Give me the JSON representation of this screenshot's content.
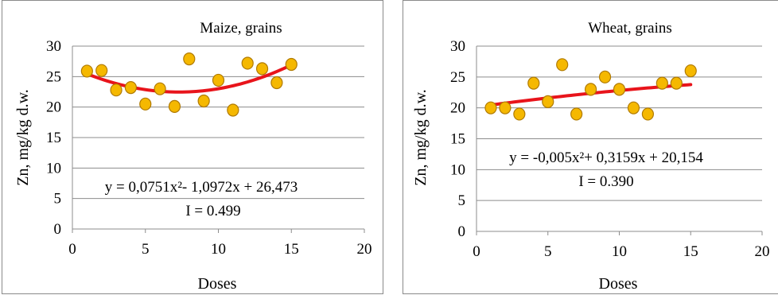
{
  "chart_data": [
    {
      "type": "scatter",
      "title": "Maize, grains",
      "xlabel": "Doses",
      "ylabel": "Zn, mg/kg d.w.",
      "xlim": [
        0,
        20
      ],
      "ylim": [
        0,
        30
      ],
      "xticks": [
        "0",
        "5",
        "10",
        "15",
        "20"
      ],
      "yticks": [
        "0",
        "5",
        "10",
        "15",
        "20",
        "25",
        "30"
      ],
      "grid": true,
      "x": [
        1,
        2,
        3,
        4,
        5,
        6,
        7,
        8,
        9,
        10,
        11,
        12,
        13,
        14,
        15
      ],
      "y": [
        25.9,
        26.0,
        22.8,
        23.2,
        20.5,
        23.0,
        20.1,
        27.9,
        21.0,
        24.4,
        19.5,
        27.2,
        26.3,
        24.0,
        27.0
      ],
      "trendline": {
        "type": "polynomial",
        "coefficients": [
          0.0751,
          -1.0972,
          26.473
        ],
        "x_range": [
          1,
          15
        ],
        "color": "#e8141b"
      },
      "equation": "y = 0,0751x²- 1,0972x + 26,473",
      "stat": "I = 0.499",
      "marker_color": "#f5b800"
    },
    {
      "type": "scatter",
      "title": "Wheat, grains",
      "xlabel": "Doses",
      "ylabel": "Zn, mg/kg d.w.",
      "xlim": [
        0,
        20
      ],
      "ylim": [
        0,
        30
      ],
      "xticks": [
        "0",
        "5",
        "10",
        "15",
        "20"
      ],
      "yticks": [
        "0",
        "5",
        "10",
        "15",
        "20",
        "25",
        "30"
      ],
      "grid": true,
      "x": [
        1,
        2,
        3,
        4,
        5,
        6,
        7,
        8,
        9,
        10,
        11,
        12,
        13,
        14,
        15
      ],
      "y": [
        20.0,
        20.0,
        19.0,
        24.0,
        21.0,
        27.0,
        19.0,
        23.0,
        25.0,
        23.0,
        20.0,
        19.0,
        24.0,
        24.0,
        26.0
      ],
      "trendline": {
        "type": "polynomial",
        "coefficients": [
          -0.005,
          0.3159,
          20.154
        ],
        "x_range": [
          1,
          15
        ],
        "color": "#e8141b"
      },
      "equation": "y = -0,005x²+ 0,3159x + 20,154",
      "stat": "I = 0.390",
      "marker_color": "#f5b800"
    }
  ]
}
